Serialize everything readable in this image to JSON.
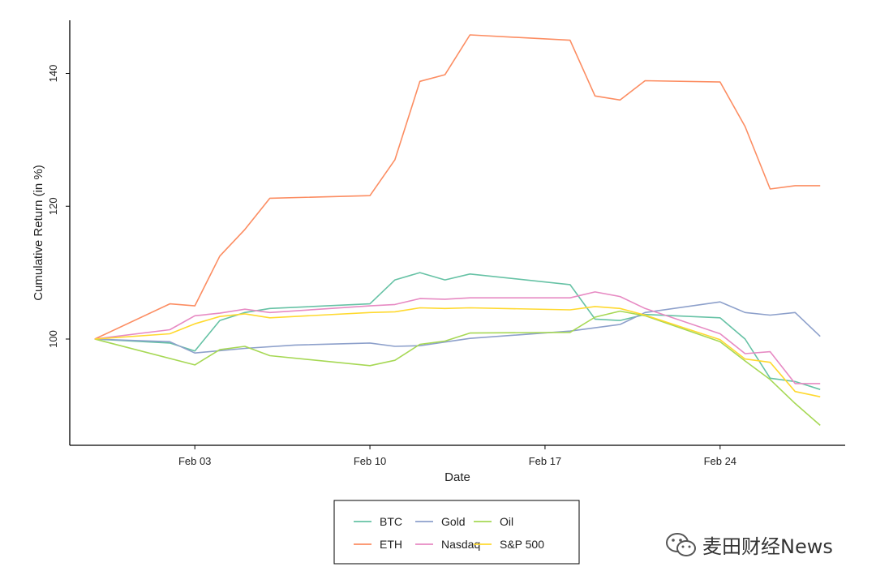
{
  "chart_data": {
    "type": "line",
    "xlabel": "Date",
    "ylabel": "Cumulative Return (in %)",
    "x": [
      "2022-01-30",
      "2022-02-02",
      "2022-02-03",
      "2022-02-04",
      "2022-02-05",
      "2022-02-06",
      "2022-02-07",
      "2022-02-10",
      "2022-02-11",
      "2022-02-12",
      "2022-02-13",
      "2022-02-14",
      "2022-02-17",
      "2022-02-18",
      "2022-02-19",
      "2022-02-20",
      "2022-02-24",
      "2022-02-25",
      "2022-02-26",
      "2022-02-27",
      "2022-02-28"
    ],
    "x_ticks": [
      {
        "date": "2022-02-03",
        "label": "Feb 03"
      },
      {
        "date": "2022-02-10",
        "label": "Feb 10"
      },
      {
        "date": "2022-02-17",
        "label": "Feb 17"
      },
      {
        "date": "2022-02-24",
        "label": "Feb 24"
      }
    ],
    "y_ticks": [
      100,
      120,
      140
    ],
    "ylim": [
      84,
      148
    ],
    "xlim": [
      "2022-01-29",
      "2022-03-01"
    ],
    "grid": false,
    "legend_position": "bottom",
    "series": [
      {
        "name": "BTC",
        "color": "#66c2a5",
        "points": [
          [
            "2022-01-30",
            100
          ],
          [
            "2022-02-02",
            99.4
          ],
          [
            "2022-02-03",
            98.2
          ],
          [
            "2022-02-04",
            102.8
          ],
          [
            "2022-02-05",
            104.0
          ],
          [
            "2022-02-06",
            104.6
          ],
          [
            "2022-02-10",
            105.3
          ],
          [
            "2022-02-11",
            108.9
          ],
          [
            "2022-02-12",
            110.0
          ],
          [
            "2022-02-13",
            108.9
          ],
          [
            "2022-02-14",
            109.8
          ],
          [
            "2022-02-18",
            108.2
          ],
          [
            "2022-02-19",
            103.0
          ],
          [
            "2022-02-20",
            102.8
          ],
          [
            "2022-02-21",
            103.7
          ],
          [
            "2022-02-24",
            103.2
          ],
          [
            "2022-02-25",
            100.0
          ],
          [
            "2022-02-26",
            94.1
          ],
          [
            "2022-02-27",
            93.6
          ],
          [
            "2022-02-28",
            92.4
          ]
        ]
      },
      {
        "name": "Gold",
        "color": "#8da0cb",
        "points": [
          [
            "2022-01-30",
            100
          ],
          [
            "2022-02-02",
            99.6
          ],
          [
            "2022-02-03",
            97.9
          ],
          [
            "2022-02-05",
            98.6
          ],
          [
            "2022-02-07",
            99.1
          ],
          [
            "2022-02-10",
            99.4
          ],
          [
            "2022-02-11",
            98.9
          ],
          [
            "2022-02-12",
            99.0
          ],
          [
            "2022-02-14",
            100.1
          ],
          [
            "2022-02-18",
            101.2
          ],
          [
            "2022-02-20",
            102.2
          ],
          [
            "2022-02-21",
            104.0
          ],
          [
            "2022-02-24",
            105.6
          ],
          [
            "2022-02-25",
            104.0
          ],
          [
            "2022-02-26",
            103.6
          ],
          [
            "2022-02-27",
            104.0
          ],
          [
            "2022-02-28",
            100.4
          ]
        ]
      },
      {
        "name": "Oil",
        "color": "#a6d854",
        "points": [
          [
            "2022-01-30",
            100
          ],
          [
            "2022-02-03",
            96.1
          ],
          [
            "2022-02-04",
            98.4
          ],
          [
            "2022-02-05",
            98.9
          ],
          [
            "2022-02-06",
            97.5
          ],
          [
            "2022-02-10",
            96.0
          ],
          [
            "2022-02-11",
            96.8
          ],
          [
            "2022-02-12",
            99.2
          ],
          [
            "2022-02-13",
            99.7
          ],
          [
            "2022-02-14",
            100.9
          ],
          [
            "2022-02-18",
            101.0
          ],
          [
            "2022-02-19",
            103.3
          ],
          [
            "2022-02-20",
            104.2
          ],
          [
            "2022-02-21",
            103.5
          ],
          [
            "2022-02-24",
            99.6
          ],
          [
            "2022-02-25",
            96.7
          ],
          [
            "2022-02-26",
            93.9
          ],
          [
            "2022-02-27",
            90.3
          ],
          [
            "2022-02-28",
            87.0
          ]
        ]
      },
      {
        "name": "ETH",
        "color": "#fc8d62",
        "points": [
          [
            "2022-01-30",
            100
          ],
          [
            "2022-02-02",
            105.3
          ],
          [
            "2022-02-03",
            105.0
          ],
          [
            "2022-02-04",
            112.5
          ],
          [
            "2022-02-05",
            116.5
          ],
          [
            "2022-02-06",
            121.2
          ],
          [
            "2022-02-10",
            121.6
          ],
          [
            "2022-02-11",
            127.0
          ],
          [
            "2022-02-12",
            138.8
          ],
          [
            "2022-02-13",
            139.8
          ],
          [
            "2022-02-14",
            145.8
          ],
          [
            "2022-02-18",
            145.0
          ],
          [
            "2022-02-19",
            136.6
          ],
          [
            "2022-02-20",
            136.0
          ],
          [
            "2022-02-21",
            138.9
          ],
          [
            "2022-02-24",
            138.7
          ],
          [
            "2022-02-25",
            132.0
          ],
          [
            "2022-02-26",
            122.6
          ],
          [
            "2022-02-27",
            123.1
          ],
          [
            "2022-02-28",
            123.1
          ]
        ]
      },
      {
        "name": "Nasdaq",
        "color": "#e78ac3",
        "points": [
          [
            "2022-01-30",
            100
          ],
          [
            "2022-02-02",
            101.4
          ],
          [
            "2022-02-03",
            103.5
          ],
          [
            "2022-02-04",
            103.9
          ],
          [
            "2022-02-05",
            104.5
          ],
          [
            "2022-02-06",
            104.0
          ],
          [
            "2022-02-10",
            105.0
          ],
          [
            "2022-02-11",
            105.2
          ],
          [
            "2022-02-12",
            106.1
          ],
          [
            "2022-02-13",
            106.0
          ],
          [
            "2022-02-14",
            106.2
          ],
          [
            "2022-02-18",
            106.2
          ],
          [
            "2022-02-19",
            107.1
          ],
          [
            "2022-02-20",
            106.4
          ],
          [
            "2022-02-21",
            104.6
          ],
          [
            "2022-02-24",
            100.8
          ],
          [
            "2022-02-25",
            97.8
          ],
          [
            "2022-02-26",
            98.1
          ],
          [
            "2022-02-27",
            93.3
          ],
          [
            "2022-02-28",
            93.3
          ]
        ]
      },
      {
        "name": "S&P 500",
        "color": "#ffd92f",
        "points": [
          [
            "2022-01-30",
            100
          ],
          [
            "2022-02-02",
            100.8
          ],
          [
            "2022-02-03",
            102.3
          ],
          [
            "2022-02-04",
            103.4
          ],
          [
            "2022-02-05",
            103.8
          ],
          [
            "2022-02-06",
            103.2
          ],
          [
            "2022-02-10",
            104.0
          ],
          [
            "2022-02-11",
            104.1
          ],
          [
            "2022-02-12",
            104.7
          ],
          [
            "2022-02-13",
            104.6
          ],
          [
            "2022-02-14",
            104.7
          ],
          [
            "2022-02-18",
            104.4
          ],
          [
            "2022-02-19",
            104.9
          ],
          [
            "2022-02-20",
            104.6
          ],
          [
            "2022-02-21",
            103.6
          ],
          [
            "2022-02-24",
            99.9
          ],
          [
            "2022-02-25",
            97.0
          ],
          [
            "2022-02-26",
            96.5
          ],
          [
            "2022-02-27",
            92.1
          ],
          [
            "2022-02-28",
            91.3
          ]
        ]
      }
    ],
    "legend_order": [
      "BTC",
      "Gold",
      "Oil",
      "ETH",
      "Nasdaq",
      "S&P 500"
    ]
  },
  "watermark": {
    "text": "麦田财经News",
    "icon": "wechat-icon"
  }
}
